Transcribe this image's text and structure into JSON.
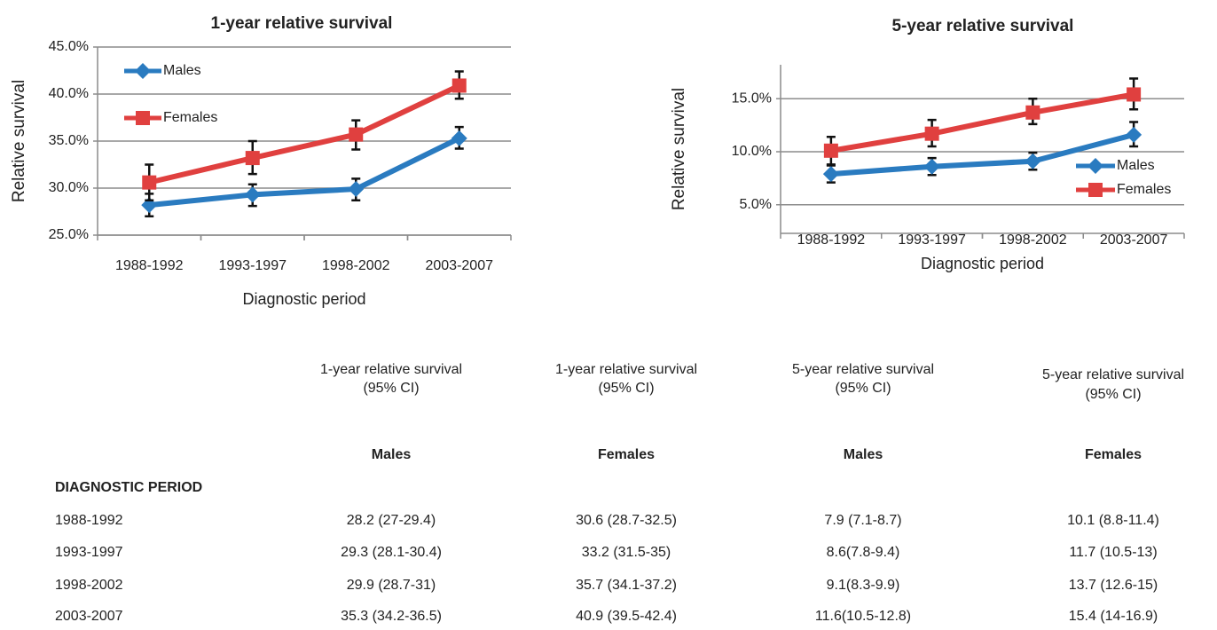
{
  "chart_data": [
    {
      "type": "line",
      "title": "1-year relative survival",
      "ylabel": "Relative survival",
      "xlabel": "Diagnostic period",
      "categories": [
        "1988-1992",
        "1993-1997",
        "1998-2002",
        "2003-2007"
      ],
      "series": [
        {
          "name": "Males",
          "color": "#2a7bc0",
          "marker": "diamond",
          "values": [
            28.2,
            29.3,
            29.9,
            35.3
          ],
          "lower": [
            27,
            28.1,
            28.7,
            34.2
          ],
          "upper": [
            29.4,
            30.4,
            31,
            36.5
          ]
        },
        {
          "name": "Females",
          "color": "#e0403f",
          "marker": "square",
          "values": [
            30.6,
            33.2,
            35.7,
            40.9
          ],
          "lower": [
            28.7,
            31.5,
            34.1,
            39.5
          ],
          "upper": [
            32.5,
            35,
            37.2,
            42.4
          ]
        }
      ],
      "ylim": [
        25,
        45
      ],
      "yticks": [
        {
          "value": 25,
          "label": "25.0%"
        },
        {
          "value": 30,
          "label": "30.0%"
        },
        {
          "value": 35,
          "label": "35.0%"
        },
        {
          "value": 40,
          "label": "40.0%"
        },
        {
          "value": 45,
          "label": "45.0%"
        }
      ],
      "grid": true,
      "legend": "upper left"
    },
    {
      "type": "line",
      "title": "5-year relative survival",
      "ylabel": "Relative survival",
      "xlabel": "Diagnostic period",
      "categories": [
        "1988-1992",
        "1993-1997",
        "1998-2002",
        "2003-2007"
      ],
      "series": [
        {
          "name": "Males",
          "color": "#2a7bc0",
          "marker": "diamond",
          "values": [
            7.9,
            8.6,
            9.1,
            11.6
          ],
          "lower": [
            7.1,
            7.8,
            8.3,
            10.5
          ],
          "upper": [
            8.7,
            9.4,
            9.9,
            12.8
          ]
        },
        {
          "name": "Females",
          "color": "#e0403f",
          "marker": "square",
          "values": [
            10.1,
            11.7,
            13.7,
            15.4
          ],
          "lower": [
            8.8,
            10.5,
            12.6,
            14
          ],
          "upper": [
            11.4,
            13,
            15,
            16.9
          ]
        }
      ],
      "ylim": [
        2.3,
        18.2
      ],
      "yticks": [
        {
          "value": 5,
          "label": "5.0%"
        },
        {
          "value": 10,
          "label": "10.0%"
        },
        {
          "value": 15,
          "label": "15.0%"
        }
      ],
      "grid": true,
      "legend": "lower right"
    }
  ],
  "table": {
    "headers": [
      [
        "1-year relative survival",
        "(95% CI)"
      ],
      [
        "1-year relative survival",
        "(95% CI)"
      ],
      [
        "5-year relative survival",
        "(95% CI)"
      ],
      [
        "5-year relative survival",
        "(95% CI)"
      ]
    ],
    "subheaders": [
      "Males",
      "Females",
      "Males",
      "Females"
    ],
    "section": "DIAGNOSTIC PERIOD",
    "rows": [
      [
        "1988-1992",
        "28.2 (27-29.4)",
        "30.6 (28.7-32.5)",
        "7.9 (7.1-8.7)",
        "10.1 (8.8-11.4)"
      ],
      [
        "1993-1997",
        "29.3 (28.1-30.4)",
        "33.2 (31.5-35)",
        "8.6(7.8-9.4)",
        "11.7 (10.5-13)"
      ],
      [
        "1998-2002",
        "29.9 (28.7-31)",
        "35.7 (34.1-37.2)",
        "9.1(8.3-9.9)",
        "13.7 (12.6-15)"
      ],
      [
        "2003-2007",
        "35.3 (34.2-36.5)",
        "40.9 (39.5-42.4)",
        "11.6(10.5-12.8)",
        "15.4 (14-16.9)"
      ]
    ]
  }
}
